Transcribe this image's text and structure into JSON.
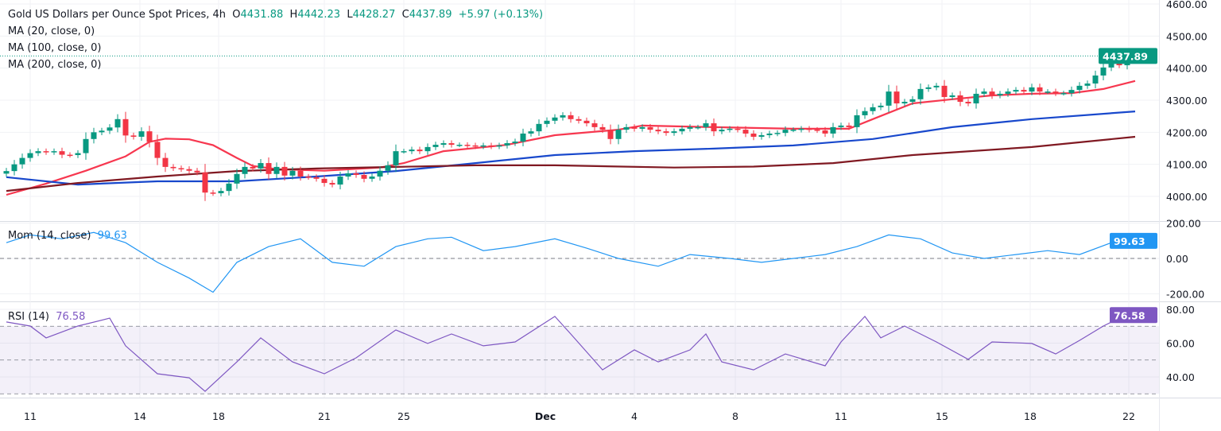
{
  "header": {
    "symbol": "Gold US Dollars per Ounce Spot Prices, 4h",
    "open_label": "O",
    "open": "4431.88",
    "high_label": "H",
    "high": "4442.23",
    "low_label": "L",
    "low": "4428.27",
    "close_label": "C",
    "close": "4437.89",
    "change": "+5.97 (+0.13%)"
  },
  "indicators": {
    "ma20": "MA (20, close, 0)",
    "ma100": "MA (100, close, 0)",
    "ma200": "MA (200, close, 0)",
    "mom": "Mom (14, close)",
    "mom_value": "99.63",
    "rsi": "RSI (14)",
    "rsi_value": "76.58"
  },
  "colors": {
    "up": "#089981",
    "down": "#f23645",
    "ma20": "#f7374f",
    "ma100": "#1848cc",
    "ma200": "#801922",
    "mom": "#2196f3",
    "rsi": "#7e57c2"
  },
  "chart_data": [
    {
      "type": "candlestick",
      "panel": "price",
      "ylim": [
        3960,
        4600
      ],
      "yticks": [
        "4000.00",
        "4100.00",
        "4200.00",
        "4300.00",
        "4400.00",
        "4500.00",
        "4600.00"
      ],
      "last_price_label": "4437.89",
      "last_price": 4437.89,
      "xticks": [
        {
          "label": "11",
          "bar": 3
        },
        {
          "label": "14",
          "bar": 16.8
        },
        {
          "label": "18",
          "bar": 26.7
        },
        {
          "label": "21",
          "bar": 40
        },
        {
          "label": "25",
          "bar": 50
        },
        {
          "label": "Dec",
          "bar": 67.8
        },
        {
          "label": "4",
          "bar": 79
        },
        {
          "label": "8",
          "bar": 91.7
        },
        {
          "label": "11",
          "bar": 105
        },
        {
          "label": "15",
          "bar": 117.7
        },
        {
          "label": "18",
          "bar": 128.8
        },
        {
          "label": "22",
          "bar": 141.2
        }
      ],
      "closes": [
        4079,
        4100,
        4120,
        4135,
        4141,
        4138,
        4141,
        4130,
        4129,
        4135,
        4179,
        4200,
        4205,
        4215,
        4241,
        4190,
        4186,
        4203,
        4170,
        4120,
        4092,
        4088,
        4085,
        4080,
        4075,
        4012,
        4010,
        4017,
        4040,
        4070,
        4092,
        4087,
        4104,
        4070,
        4092,
        4065,
        4080,
        4062,
        4060,
        4055,
        4042,
        4037,
        4062,
        4072,
        4067,
        4055,
        4062,
        4080,
        4097,
        4141,
        4141,
        4146,
        4141,
        4154,
        4161,
        4166,
        4161,
        4161,
        4159,
        4156,
        4159,
        4156,
        4159,
        4166,
        4171,
        4196,
        4203,
        4226,
        4236,
        4246,
        4253,
        4241,
        4236,
        4228,
        4216,
        4208,
        4179,
        4208,
        4216,
        4211,
        4216,
        4208,
        4203,
        4198,
        4203,
        4211,
        4216,
        4216,
        4228,
        4203,
        4208,
        4211,
        4208,
        4196,
        4186,
        4191,
        4196,
        4198,
        4208,
        4208,
        4211,
        4208,
        4206,
        4196,
        4216,
        4221,
        4216,
        4253,
        4266,
        4278,
        4283,
        4327,
        4290,
        4295,
        4303,
        4335,
        4340,
        4345,
        4310,
        4315,
        4295,
        4290,
        4320,
        4327,
        4315,
        4320,
        4327,
        4332,
        4327,
        4340,
        4327,
        4327,
        4322,
        4322,
        4332,
        4345,
        4352,
        4377,
        4402,
        4414,
        4409,
        4427,
        4438
      ],
      "series": [
        {
          "name": "MA (20, close, 0)",
          "points": [
            [
              0,
              4005
            ],
            [
              5,
              4040
            ],
            [
              10,
              4080
            ],
            [
              15,
              4125
            ],
            [
              18,
              4170
            ],
            [
              20,
              4180
            ],
            [
              23,
              4178
            ],
            [
              26,
              4160
            ],
            [
              29,
              4120
            ],
            [
              31,
              4095
            ],
            [
              34,
              4085
            ],
            [
              40,
              4080
            ],
            [
              47,
              4090
            ],
            [
              50,
              4104
            ],
            [
              55,
              4141
            ],
            [
              63,
              4161
            ],
            [
              69,
              4191
            ],
            [
              77,
              4208
            ],
            [
              80,
              4221
            ],
            [
              89,
              4216
            ],
            [
              99,
              4211
            ],
            [
              106,
              4211
            ],
            [
              109,
              4241
            ],
            [
              114,
              4290
            ],
            [
              119,
              4303
            ],
            [
              124,
              4315
            ],
            [
              129,
              4320
            ],
            [
              134,
              4322
            ],
            [
              138,
              4335
            ],
            [
              142,
              4360
            ]
          ]
        },
        {
          "name": "MA (100, close, 0)",
          "points": [
            [
              0,
              4060
            ],
            [
              9,
              4037
            ],
            [
              19,
              4047
            ],
            [
              29,
              4047
            ],
            [
              39,
              4062
            ],
            [
              49,
              4079
            ],
            [
              59,
              4104
            ],
            [
              69,
              4129
            ],
            [
              79,
              4141
            ],
            [
              89,
              4149
            ],
            [
              99,
              4159
            ],
            [
              109,
              4179
            ],
            [
              119,
              4216
            ],
            [
              129,
              4241
            ],
            [
              142,
              4265
            ]
          ]
        },
        {
          "name": "MA (200, close, 0)",
          "points": [
            [
              0,
              4017
            ],
            [
              9,
              4042
            ],
            [
              19,
              4062
            ],
            [
              29,
              4079
            ],
            [
              39,
              4087
            ],
            [
              49,
              4092
            ],
            [
              59,
              4097
            ],
            [
              69,
              4097
            ],
            [
              84,
              4090
            ],
            [
              94,
              4093
            ],
            [
              104,
              4104
            ],
            [
              114,
              4129
            ],
            [
              129,
              4154
            ],
            [
              142,
              4186
            ]
          ]
        }
      ]
    },
    {
      "type": "line",
      "panel": "momentum",
      "name": "Mom (14, close)",
      "ylim": [
        -200,
        200
      ],
      "yticks": [
        "-200.00",
        "0.00",
        "200.00"
      ],
      "zero_line": 0,
      "points": [
        [
          0,
          89
        ],
        [
          3,
          133
        ],
        [
          7,
          111
        ],
        [
          11,
          147
        ],
        [
          15,
          89
        ],
        [
          19,
          -22
        ],
        [
          23,
          -111
        ],
        [
          26,
          -191
        ],
        [
          29,
          -22
        ],
        [
          33,
          67
        ],
        [
          37,
          111
        ],
        [
          41,
          -22
        ],
        [
          45,
          -44
        ],
        [
          49,
          67
        ],
        [
          53,
          111
        ],
        [
          56,
          120
        ],
        [
          60,
          44
        ],
        [
          64,
          67
        ],
        [
          69,
          111
        ],
        [
          73,
          58
        ],
        [
          77,
          0
        ],
        [
          82,
          -44
        ],
        [
          86,
          22
        ],
        [
          91,
          0
        ],
        [
          95,
          -22
        ],
        [
          99,
          0
        ],
        [
          103,
          22
        ],
        [
          107,
          67
        ],
        [
          111,
          133
        ],
        [
          115,
          111
        ],
        [
          119,
          31
        ],
        [
          123,
          0
        ],
        [
          127,
          22
        ],
        [
          131,
          44
        ],
        [
          135,
          22
        ],
        [
          139,
          89
        ],
        [
          141,
          111
        ],
        [
          142,
          99.63
        ]
      ]
    },
    {
      "type": "line",
      "panel": "rsi",
      "name": "RSI (14)",
      "ylim": [
        30,
        80
      ],
      "yticks": [
        "40.00",
        "60.00",
        "80.00"
      ],
      "bands": [
        30,
        50,
        70
      ],
      "points": [
        [
          0,
          72.5
        ],
        [
          3,
          70.1
        ],
        [
          5,
          63.1
        ],
        [
          9,
          70.1
        ],
        [
          13,
          74.8
        ],
        [
          15,
          58.4
        ],
        [
          19,
          41.9
        ],
        [
          23,
          39.5
        ],
        [
          25,
          31.5
        ],
        [
          29,
          48.9
        ],
        [
          32,
          63.1
        ],
        [
          36,
          48.9
        ],
        [
          40,
          41.9
        ],
        [
          44,
          51.3
        ],
        [
          49,
          67.8
        ],
        [
          53,
          59.8
        ],
        [
          56,
          65.4
        ],
        [
          60,
          58.4
        ],
        [
          64,
          60.7
        ],
        [
          69,
          75.8
        ],
        [
          71,
          65.4
        ],
        [
          75,
          44.2
        ],
        [
          79,
          56
        ],
        [
          82,
          48.9
        ],
        [
          86,
          56
        ],
        [
          88,
          65.4
        ],
        [
          90,
          48.9
        ],
        [
          94,
          44.2
        ],
        [
          98,
          53.6
        ],
        [
          103,
          46.6
        ],
        [
          105,
          60.7
        ],
        [
          108,
          75.8
        ],
        [
          110,
          63.1
        ],
        [
          113,
          70.1
        ],
        [
          117,
          60.7
        ],
        [
          121,
          50.4
        ],
        [
          124,
          60.7
        ],
        [
          129,
          59.8
        ],
        [
          132,
          53.6
        ],
        [
          135,
          61.6
        ],
        [
          138,
          70.1
        ],
        [
          140,
          74.8
        ],
        [
          142,
          76.58
        ]
      ]
    }
  ]
}
